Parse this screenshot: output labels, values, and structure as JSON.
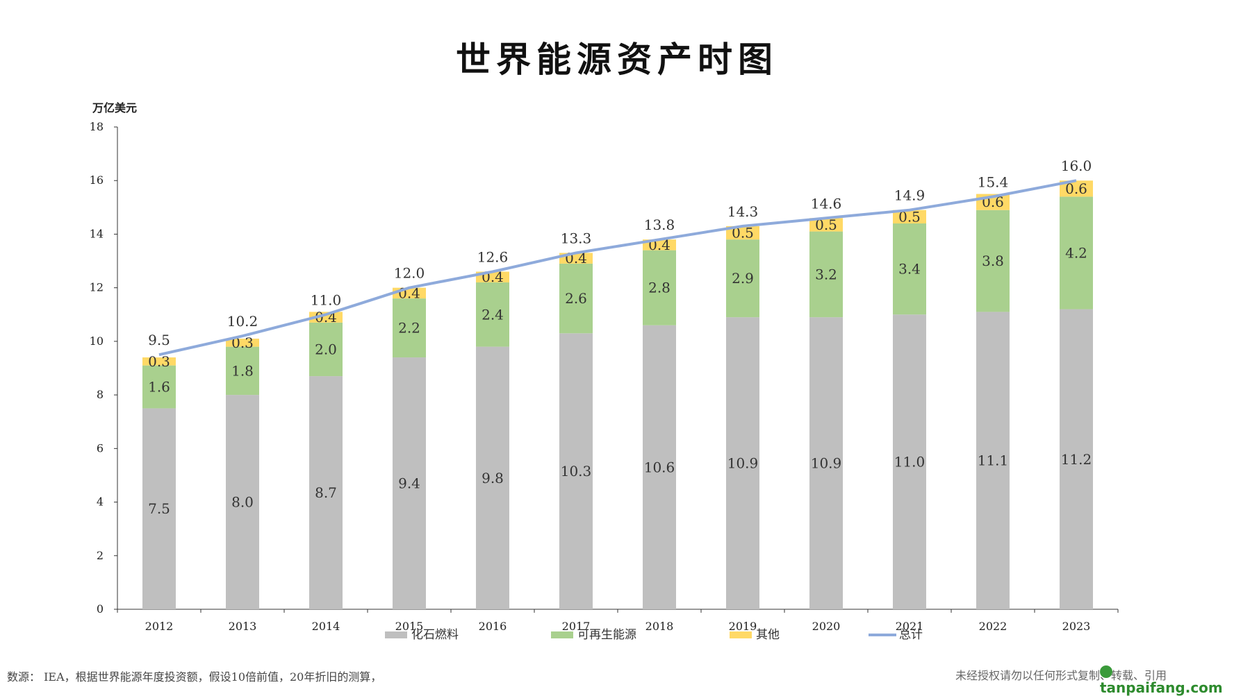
{
  "title": "世界能源资产时图",
  "footer": {
    "source": "数源：  IEA，根据世界能源年度投资额，假设10倍前值，20年折旧的测算，",
    "notice": "未经授权请勿以任何形式复制、转载、引用",
    "watermark": "tanpaifang.com"
  },
  "chart_data": {
    "type": "bar",
    "stacked": true,
    "title": "世界能源资产时图",
    "ylabel": "万亿美元",
    "xlabel": "",
    "ylim": [
      0,
      18
    ],
    "yticks": [
      "0",
      "2",
      "4",
      "6",
      "8",
      "10",
      "12",
      "14",
      "16",
      "18"
    ],
    "grid": false,
    "legend_position": "bottom",
    "categories": [
      "2012",
      "2013",
      "2014",
      "2015",
      "2016",
      "2017",
      "2018",
      "2019",
      "2020",
      "2021",
      "2022",
      "2023"
    ],
    "series": [
      {
        "name": "化石燃料",
        "type": "bar",
        "color": "#bfbfbf",
        "values": [
          7.5,
          8.0,
          8.7,
          9.4,
          9.8,
          10.3,
          10.6,
          10.9,
          10.9,
          11.0,
          11.1,
          11.2
        ],
        "labels": [
          "7.5",
          "8.0",
          "8.7",
          "9.4",
          "9.8",
          "10.3",
          "10.6",
          "10.9",
          "10.9",
          "11.0",
          "11.1",
          "11.2"
        ]
      },
      {
        "name": "可再生能源",
        "type": "bar",
        "color": "#a9d08e",
        "values": [
          1.6,
          1.8,
          2.0,
          2.2,
          2.4,
          2.6,
          2.8,
          2.9,
          3.2,
          3.4,
          3.8,
          4.2
        ],
        "labels": [
          "1.6",
          "1.8",
          "2.0",
          "2.2",
          "2.4",
          "2.6",
          "2.8",
          "2.9",
          "3.2",
          "3.4",
          "3.8",
          "4.2"
        ]
      },
      {
        "name": "其他",
        "type": "bar",
        "color": "#ffd966",
        "values": [
          0.3,
          0.3,
          0.4,
          0.4,
          0.4,
          0.4,
          0.4,
          0.5,
          0.5,
          0.5,
          0.6,
          0.6
        ],
        "labels": [
          "0.3",
          "0.3",
          "0.4",
          "0.4",
          "0.4",
          "0.4",
          "0.4",
          "0.5",
          "0.5",
          "0.5",
          "0.6",
          "0.6"
        ]
      },
      {
        "name": "总计",
        "type": "line",
        "color": "#8eaadb",
        "values": [
          9.5,
          10.2,
          11.0,
          12.0,
          12.6,
          13.3,
          13.8,
          14.3,
          14.6,
          14.9,
          15.4,
          16.0
        ],
        "labels": [
          "9.5",
          "10.2",
          "11.0",
          "12.0",
          "12.6",
          "13.3",
          "13.8",
          "14.3",
          "14.6",
          "14.9",
          "15.4",
          "16.0"
        ]
      }
    ]
  }
}
